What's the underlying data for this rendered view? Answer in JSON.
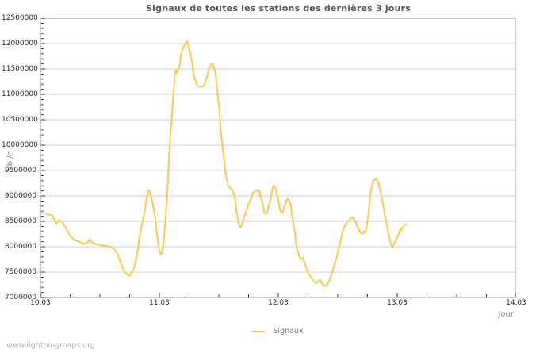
{
  "page": {
    "watermark": "www.lightningmaps.org"
  },
  "chart_data": {
    "type": "line",
    "title": "Signaux de toutes les stations des dernières 3 jours",
    "xlabel": "Jour",
    "ylabel": "Nb /h",
    "xlim": [
      10,
      14
    ],
    "ylim": [
      7000000,
      12500000
    ],
    "grid": "horizontal-major-only",
    "legend_position": "bottom-center",
    "x_minor_step": 0.25,
    "y_minor_step": 100000,
    "y_major_step": 500000,
    "x_ticks": [
      {
        "value": 10,
        "label": "10.03"
      },
      {
        "value": 11,
        "label": "11.03"
      },
      {
        "value": 12,
        "label": "12.03"
      },
      {
        "value": 13,
        "label": "13.03"
      },
      {
        "value": 14,
        "label": "14.03"
      }
    ],
    "y_ticks": [
      {
        "value": 7000000,
        "label": "7000000"
      },
      {
        "value": 7500000,
        "label": "7500000"
      },
      {
        "value": 8000000,
        "label": "8000000"
      },
      {
        "value": 8500000,
        "label": "8500000"
      },
      {
        "value": 9000000,
        "label": "9000000"
      },
      {
        "value": 9500000,
        "label": "9500000"
      },
      {
        "value": 10000000,
        "label": "10000000"
      },
      {
        "value": 10500000,
        "label": "10500000"
      },
      {
        "value": 11000000,
        "label": "11000000"
      },
      {
        "value": 11500000,
        "label": "11500000"
      },
      {
        "value": 12000000,
        "label": "12000000"
      },
      {
        "value": 12500000,
        "label": "12500000"
      }
    ],
    "colors": {
      "line": "#fac84b",
      "grid": "#cccccc",
      "plot_border": "#c8c8c8",
      "tick": "#333333",
      "title_text": "#555555",
      "tick_label_text": "#2a2a2a",
      "unit_label_text": "#8c8c8c",
      "legend_text": "#787878",
      "watermark_text": "#b5b5b5",
      "background": "#ffffff"
    },
    "series": [
      {
        "name": "Signaux",
        "color": "#fac84b",
        "points": [
          [
            10.047,
            8640000
          ],
          [
            10.08,
            8630000
          ],
          [
            10.1,
            8620000
          ],
          [
            10.125,
            8500000
          ],
          [
            10.133,
            8460000
          ],
          [
            10.155,
            8530000
          ],
          [
            10.175,
            8510000
          ],
          [
            10.195,
            8450000
          ],
          [
            10.227,
            8310000
          ],
          [
            10.26,
            8180000
          ],
          [
            10.293,
            8130000
          ],
          [
            10.327,
            8100000
          ],
          [
            10.36,
            8050000
          ],
          [
            10.393,
            8080000
          ],
          [
            10.413,
            8150000
          ],
          [
            10.433,
            8080000
          ],
          [
            10.467,
            8050000
          ],
          [
            10.5,
            8040000
          ],
          [
            10.533,
            8020000
          ],
          [
            10.567,
            8010000
          ],
          [
            10.6,
            7990000
          ],
          [
            10.633,
            7920000
          ],
          [
            10.647,
            7860000
          ],
          [
            10.667,
            7730000
          ],
          [
            10.693,
            7580000
          ],
          [
            10.713,
            7490000
          ],
          [
            10.733,
            7450000
          ],
          [
            10.747,
            7430000
          ],
          [
            10.767,
            7470000
          ],
          [
            10.793,
            7630000
          ],
          [
            10.813,
            7860000
          ],
          [
            10.833,
            8200000
          ],
          [
            10.86,
            8510000
          ],
          [
            10.88,
            8740000
          ],
          [
            10.9,
            9070000
          ],
          [
            10.913,
            9120000
          ],
          [
            10.933,
            8970000
          ],
          [
            10.96,
            8660000
          ],
          [
            10.98,
            8250000
          ],
          [
            11.0,
            7920000
          ],
          [
            11.013,
            7840000
          ],
          [
            11.027,
            7940000
          ],
          [
            11.04,
            8200000
          ],
          [
            11.053,
            8600000
          ],
          [
            11.067,
            9100000
          ],
          [
            11.08,
            9700000
          ],
          [
            11.093,
            10200000
          ],
          [
            11.107,
            10600000
          ],
          [
            11.113,
            10850000
          ],
          [
            11.12,
            11050000
          ],
          [
            11.127,
            11300000
          ],
          [
            11.133,
            11430000
          ],
          [
            11.14,
            11480000
          ],
          [
            11.147,
            11420000
          ],
          [
            11.16,
            11480000
          ],
          [
            11.173,
            11610000
          ],
          [
            11.18,
            11770000
          ],
          [
            11.193,
            11870000
          ],
          [
            11.207,
            11950000
          ],
          [
            11.22,
            12010000
          ],
          [
            11.233,
            12050000
          ],
          [
            11.247,
            11950000
          ],
          [
            11.26,
            11820000
          ],
          [
            11.273,
            11660000
          ],
          [
            11.28,
            11510000
          ],
          [
            11.293,
            11350000
          ],
          [
            11.307,
            11250000
          ],
          [
            11.313,
            11200000
          ],
          [
            11.327,
            11160000
          ],
          [
            11.34,
            11150000
          ],
          [
            11.347,
            11160000
          ],
          [
            11.36,
            11150000
          ],
          [
            11.373,
            11170000
          ],
          [
            11.38,
            11190000
          ],
          [
            11.393,
            11300000
          ],
          [
            11.407,
            11400000
          ],
          [
            11.413,
            11480000
          ],
          [
            11.427,
            11550000
          ],
          [
            11.44,
            11590000
          ],
          [
            11.447,
            11600000
          ],
          [
            11.46,
            11530000
          ],
          [
            11.473,
            11400000
          ],
          [
            11.48,
            11200000
          ],
          [
            11.493,
            10940000
          ],
          [
            11.507,
            10680000
          ],
          [
            11.513,
            10370000
          ],
          [
            11.527,
            10060000
          ],
          [
            11.54,
            9810000
          ],
          [
            11.547,
            9630000
          ],
          [
            11.56,
            9390000
          ],
          [
            11.573,
            9260000
          ],
          [
            11.58,
            9190000
          ],
          [
            11.593,
            9160000
          ],
          [
            11.607,
            9140000
          ],
          [
            11.613,
            9110000
          ],
          [
            11.627,
            9030000
          ],
          [
            11.64,
            8900000
          ],
          [
            11.647,
            8720000
          ],
          [
            11.66,
            8540000
          ],
          [
            11.673,
            8410000
          ],
          [
            11.68,
            8370000
          ],
          [
            11.693,
            8440000
          ],
          [
            11.707,
            8510000
          ],
          [
            11.713,
            8590000
          ],
          [
            11.727,
            8670000
          ],
          [
            11.74,
            8750000
          ],
          [
            11.747,
            8820000
          ],
          [
            11.76,
            8900000
          ],
          [
            11.773,
            8950000
          ],
          [
            11.78,
            9030000
          ],
          [
            11.793,
            9080000
          ],
          [
            11.807,
            9110000
          ],
          [
            11.813,
            9120000
          ],
          [
            11.827,
            9090000
          ],
          [
            11.84,
            9110000
          ],
          [
            11.847,
            9030000
          ],
          [
            11.86,
            8930000
          ],
          [
            11.873,
            8800000
          ],
          [
            11.88,
            8690000
          ],
          [
            11.893,
            8640000
          ],
          [
            11.907,
            8670000
          ],
          [
            11.913,
            8750000
          ],
          [
            11.927,
            8850000
          ],
          [
            11.94,
            8980000
          ],
          [
            11.947,
            9110000
          ],
          [
            11.96,
            9200000
          ],
          [
            11.973,
            9180000
          ],
          [
            11.98,
            9110000
          ],
          [
            11.993,
            8980000
          ],
          [
            12.007,
            8850000
          ],
          [
            12.013,
            8750000
          ],
          [
            12.027,
            8670000
          ],
          [
            12.04,
            8690000
          ],
          [
            12.047,
            8770000
          ],
          [
            12.06,
            8850000
          ],
          [
            12.073,
            8930000
          ],
          [
            12.08,
            8950000
          ],
          [
            12.093,
            8900000
          ],
          [
            12.107,
            8800000
          ],
          [
            12.113,
            8640000
          ],
          [
            12.127,
            8460000
          ],
          [
            12.14,
            8280000
          ],
          [
            12.147,
            8100000
          ],
          [
            12.16,
            7940000
          ],
          [
            12.173,
            7840000
          ],
          [
            12.18,
            7790000
          ],
          [
            12.193,
            7760000
          ],
          [
            12.207,
            7780000
          ],
          [
            12.213,
            7740000
          ],
          [
            12.227,
            7650000
          ],
          [
            12.24,
            7550000
          ],
          [
            12.26,
            7450000
          ],
          [
            12.28,
            7380000
          ],
          [
            12.3,
            7320000
          ],
          [
            12.32,
            7280000
          ],
          [
            12.34,
            7330000
          ],
          [
            12.353,
            7350000
          ],
          [
            12.367,
            7280000
          ],
          [
            12.38,
            7250000
          ],
          [
            12.393,
            7220000
          ],
          [
            12.407,
            7250000
          ],
          [
            12.42,
            7280000
          ],
          [
            12.433,
            7350000
          ],
          [
            12.447,
            7450000
          ],
          [
            12.467,
            7600000
          ],
          [
            12.487,
            7750000
          ],
          [
            12.507,
            7950000
          ],
          [
            12.527,
            8150000
          ],
          [
            12.547,
            8350000
          ],
          [
            12.567,
            8450000
          ],
          [
            12.587,
            8500000
          ],
          [
            12.607,
            8550000
          ],
          [
            12.627,
            8580000
          ],
          [
            12.647,
            8500000
          ],
          [
            12.667,
            8400000
          ],
          [
            12.68,
            8320000
          ],
          [
            12.693,
            8270000
          ],
          [
            12.707,
            8250000
          ],
          [
            12.72,
            8300000
          ],
          [
            12.733,
            8280000
          ],
          [
            12.747,
            8450000
          ],
          [
            12.76,
            8700000
          ],
          [
            12.773,
            9000000
          ],
          [
            12.787,
            9200000
          ],
          [
            12.8,
            9300000
          ],
          [
            12.813,
            9320000
          ],
          [
            12.827,
            9330000
          ],
          [
            12.84,
            9280000
          ],
          [
            12.853,
            9150000
          ],
          [
            12.867,
            9000000
          ],
          [
            12.88,
            8850000
          ],
          [
            12.893,
            8650000
          ],
          [
            12.907,
            8500000
          ],
          [
            12.92,
            8350000
          ],
          [
            12.933,
            8200000
          ],
          [
            12.947,
            8050000
          ],
          [
            12.96,
            7990000
          ],
          [
            12.973,
            8060000
          ],
          [
            12.987,
            8120000
          ],
          [
            13.0,
            8190000
          ],
          [
            13.013,
            8260000
          ],
          [
            13.027,
            8350000
          ],
          [
            13.033,
            8320000
          ],
          [
            13.047,
            8380000
          ],
          [
            13.06,
            8420000
          ],
          [
            13.073,
            8440000
          ]
        ]
      }
    ]
  }
}
